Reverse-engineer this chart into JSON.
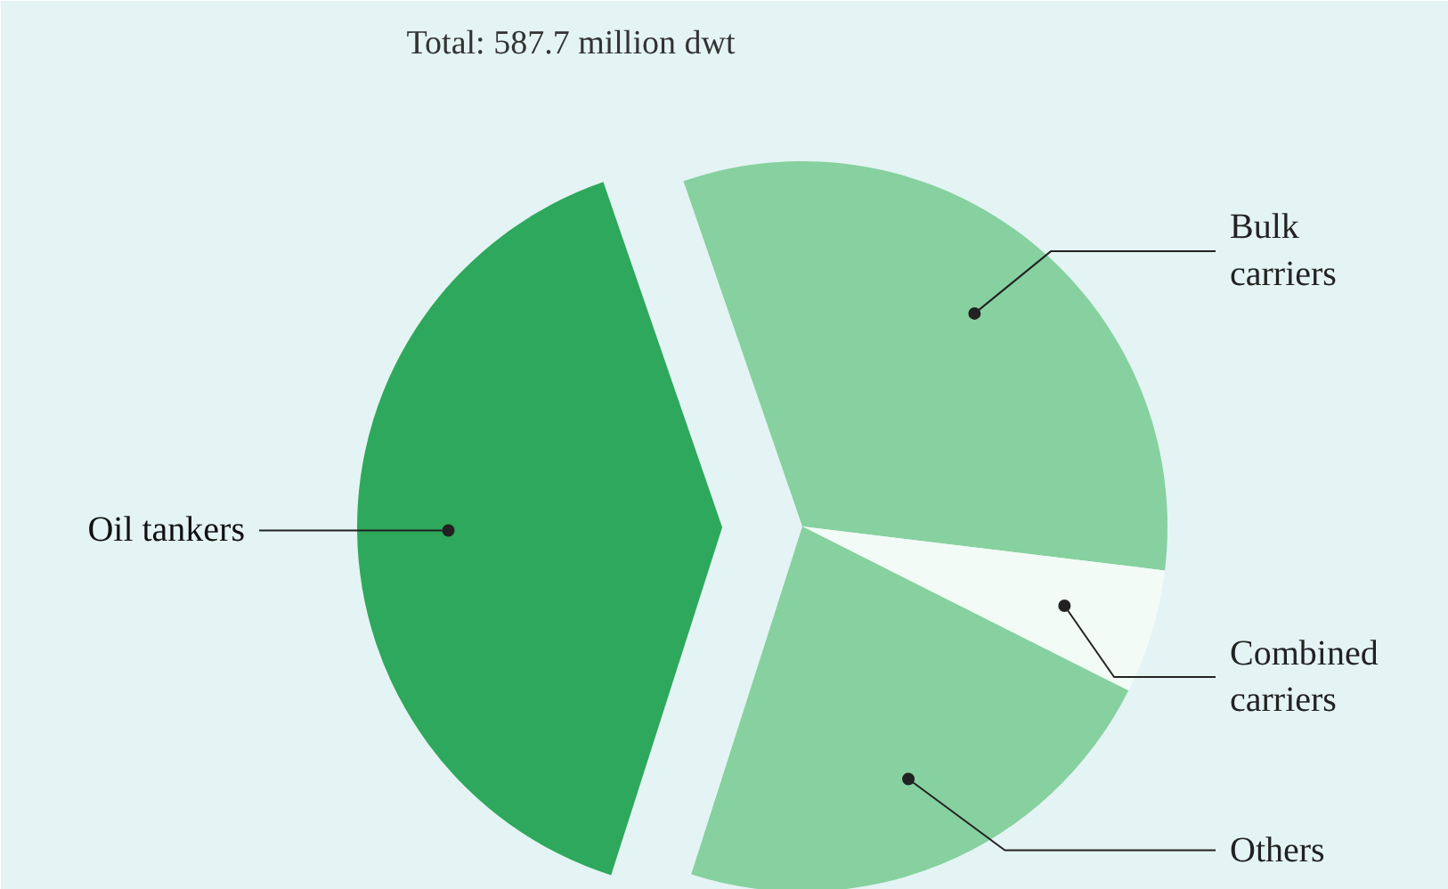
{
  "chart_data": {
    "type": "pie",
    "title": "Total: 587.7 million dwt",
    "categories": [
      "Bulk carriers",
      "Combined carriers",
      "Others",
      "Oil tankers"
    ],
    "values": [
      32.2,
      5.5,
      22.5,
      39.8
    ],
    "colors": [
      "#86d19f",
      "#f2fbf6",
      "#86d19f",
      "#2ea85c"
    ]
  }
}
